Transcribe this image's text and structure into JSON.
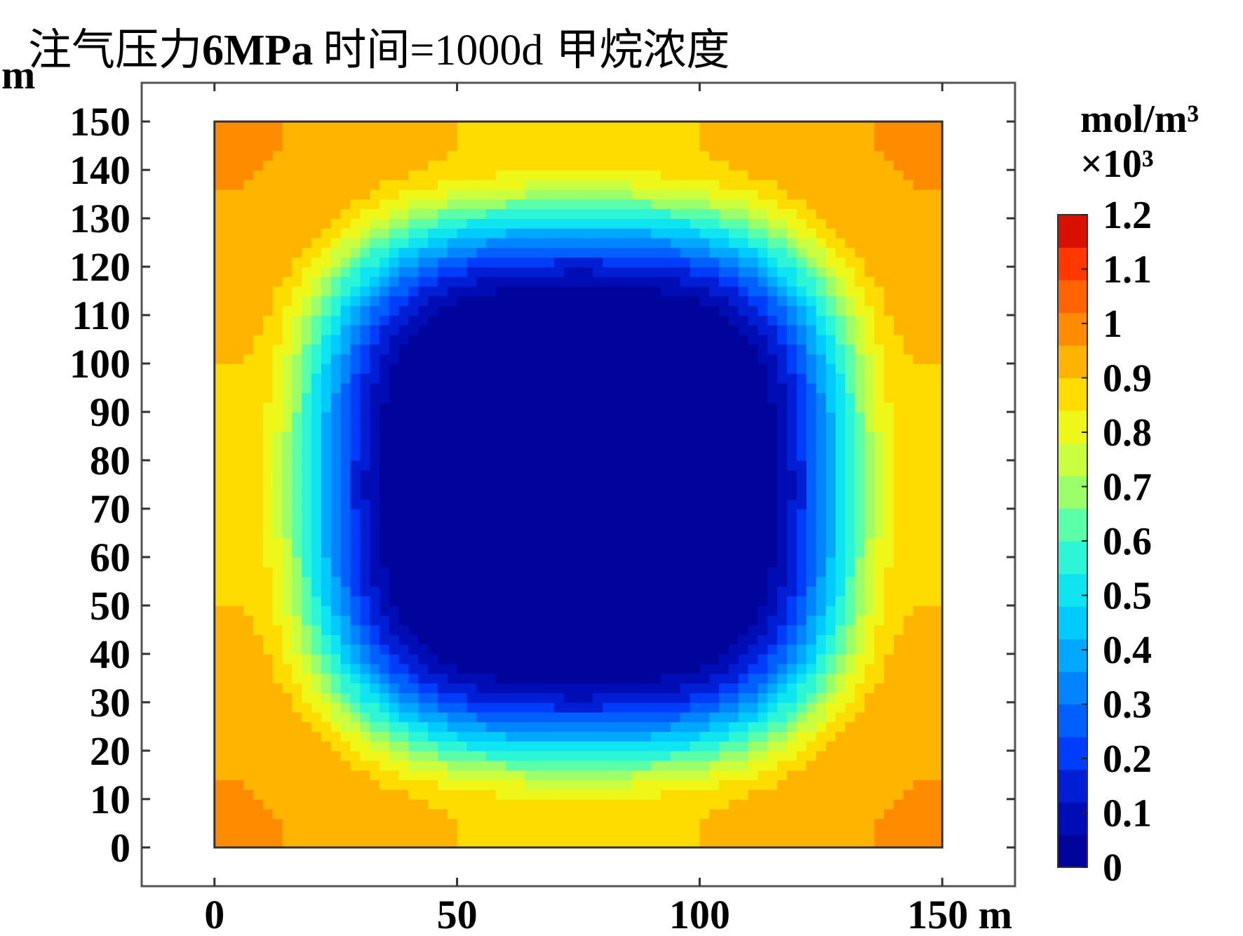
{
  "chart_data": {
    "type": "heatmap",
    "title_parts": {
      "prefix": "注气压力",
      "pressure": "6MPa",
      "time": "时间=1000d",
      "quantity": "甲烷浓度"
    },
    "x_axis": {
      "unit": "m",
      "lim": [
        -15,
        165
      ],
      "ticks": [
        0,
        50,
        100,
        150
      ],
      "tick_labels": [
        "0",
        "50",
        "100",
        "150 m"
      ]
    },
    "y_axis": {
      "unit": "m",
      "lim": [
        -8,
        158
      ],
      "ticks": [
        0,
        10,
        20,
        30,
        40,
        50,
        60,
        70,
        80,
        90,
        100,
        110,
        120,
        130,
        140,
        150
      ],
      "tick_labels": [
        "0",
        "10",
        "20",
        "30",
        "40",
        "50",
        "60",
        "70",
        "80",
        "90",
        "100",
        "110",
        "120",
        "130",
        "140",
        "150"
      ]
    },
    "domain": {
      "x": [
        0,
        150
      ],
      "y": [
        0,
        150
      ]
    },
    "field": {
      "description_value_at": "concentration depleted around a central production point (75,75)",
      "center": [
        75,
        75
      ],
      "core_value": 0.0,
      "edge_value": 0.85,
      "corner_value": 0.95,
      "iso_value_ring_0_5_halfwidth": 57
    },
    "colorbar": {
      "unit": "mol/m³",
      "multiplier": "×10³",
      "min": 0,
      "max": 1.2,
      "levels": 20,
      "tick_values": [
        0,
        0.1,
        0.2,
        0.3,
        0.4,
        0.5,
        0.6,
        0.7,
        0.8,
        0.9,
        1,
        1.1,
        1.2
      ],
      "tick_labels": [
        "0",
        "0.1",
        "0.2",
        "0.3",
        "0.4",
        "0.5",
        "0.6",
        "0.7",
        "0.8",
        "0.9",
        "1",
        "1.1",
        "1.2"
      ]
    },
    "colors": [
      "#00008f",
      "#0010c0",
      "#0040ff",
      "#0080ff",
      "#00c0ff",
      "#00e8f0",
      "#40ffc0",
      "#a0ff60",
      "#e8ff20",
      "#ffe000",
      "#ffb000",
      "#ff8000",
      "#ff5000",
      "#ff2000",
      "#e00000",
      "#a00000"
    ]
  }
}
